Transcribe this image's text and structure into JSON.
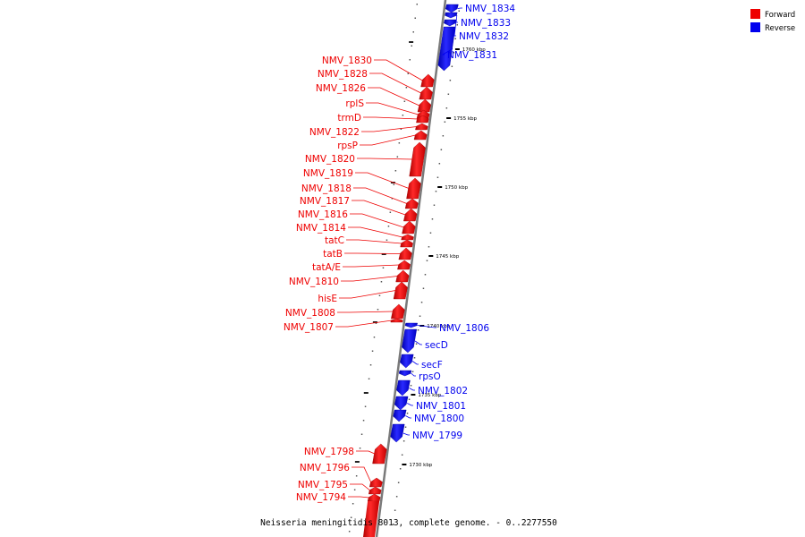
{
  "caption": "Neisseria meningitidis 8013, complete genome. - 0..2277550",
  "legend": [
    {
      "label": "Forward",
      "color": "#ee0000"
    },
    {
      "label": "Reverse",
      "color": "#0000ee"
    }
  ],
  "colors": {
    "forward": "#ee0000",
    "reverse": "#0000ee",
    "backbone": "#808080"
  },
  "ticks": [
    {
      "label": "1760 kbp"
    },
    {
      "label": "1755 kbp"
    },
    {
      "label": "1750 kbp"
    },
    {
      "label": "1745 kbp"
    },
    {
      "label": "1740 kbp"
    },
    {
      "label": "1735 kbp"
    },
    {
      "label": "1730 kbp"
    }
  ],
  "forward_genes": [
    {
      "label": "NMV_1830"
    },
    {
      "label": "NMV_1828"
    },
    {
      "label": "NMV_1826"
    },
    {
      "label": "rplS"
    },
    {
      "label": "trmD"
    },
    {
      "label": "NMV_1822"
    },
    {
      "label": "rpsP"
    },
    {
      "label": "NMV_1820"
    },
    {
      "label": "NMV_1819"
    },
    {
      "label": "NMV_1818"
    },
    {
      "label": "NMV_1817"
    },
    {
      "label": "NMV_1816"
    },
    {
      "label": "NMV_1814"
    },
    {
      "label": "tatC"
    },
    {
      "label": "tatB"
    },
    {
      "label": "tatA/E"
    },
    {
      "label": "NMV_1810"
    },
    {
      "label": "hisE"
    },
    {
      "label": "NMV_1808"
    },
    {
      "label": "NMV_1807"
    },
    {
      "label": "NMV_1798"
    },
    {
      "label": "NMV_1796"
    },
    {
      "label": "NMV_1795"
    },
    {
      "label": "NMV_1794"
    }
  ],
  "reverse_genes": [
    {
      "label": "NMV_1834"
    },
    {
      "label": "NMV_1833"
    },
    {
      "label": "NMV_1832"
    },
    {
      "label": "NMV_1831"
    },
    {
      "label": "NMV_1806"
    },
    {
      "label": "secD"
    },
    {
      "label": "secF"
    },
    {
      "label": "rpsO"
    },
    {
      "label": "NMV_1802"
    },
    {
      "label": "NMV_1801"
    },
    {
      "label": "NMV_1800"
    },
    {
      "label": "NMV_1799"
    }
  ]
}
